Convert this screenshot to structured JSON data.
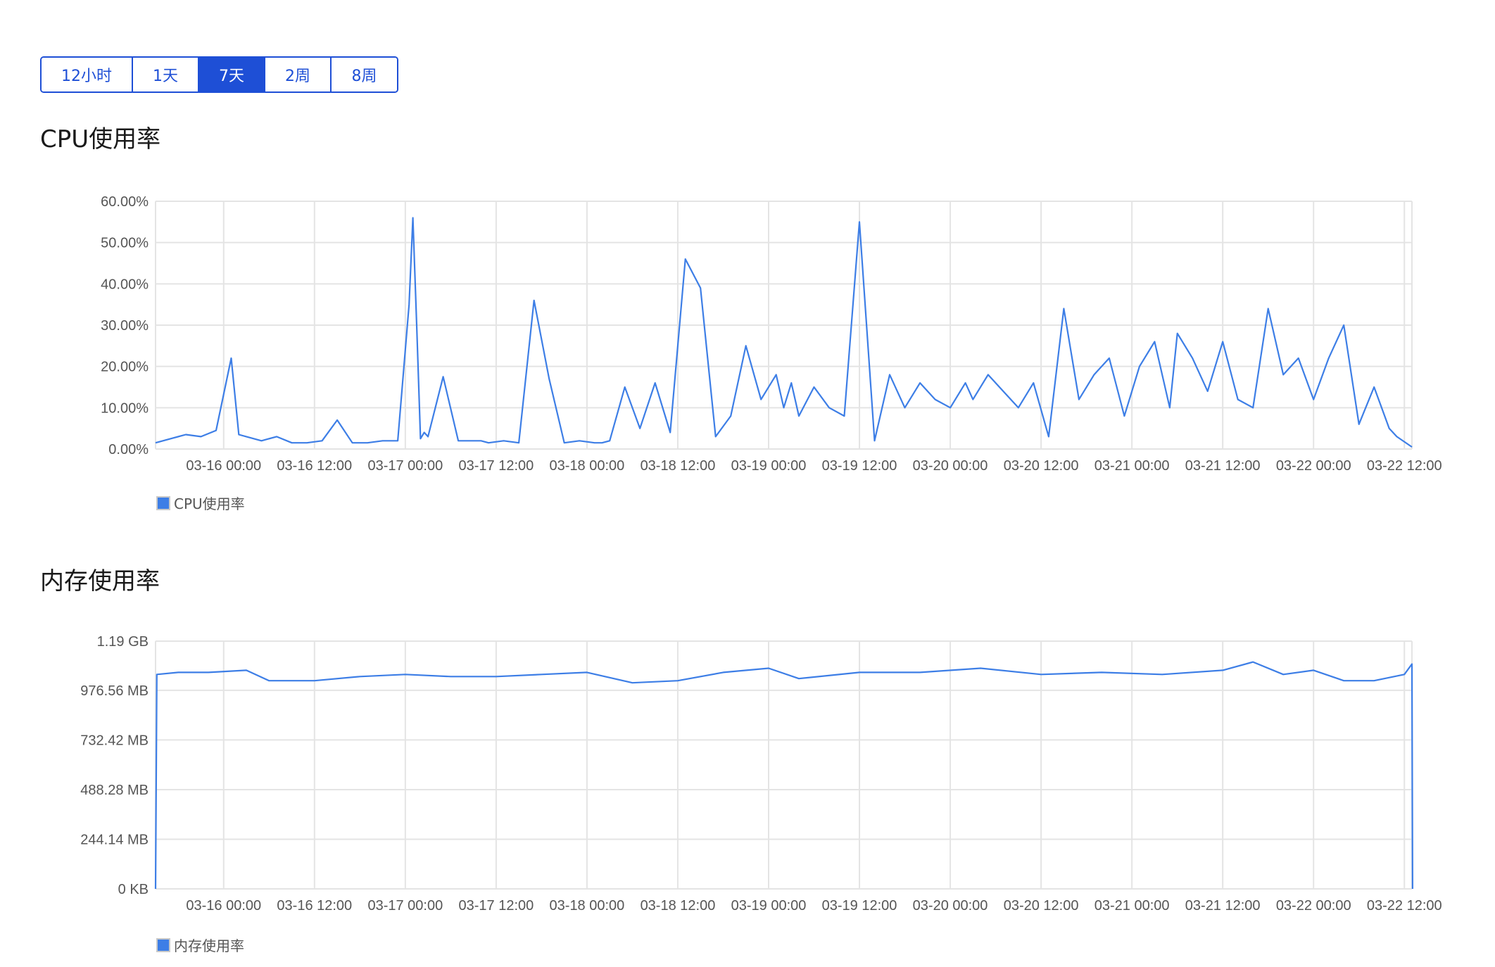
{
  "range_tabs": [
    {
      "label": "12小时",
      "active": false
    },
    {
      "label": "1天",
      "active": false
    },
    {
      "label": "7天",
      "active": true
    },
    {
      "label": "2周",
      "active": false
    },
    {
      "label": "8周",
      "active": false
    }
  ],
  "colors": {
    "accent": "#1e4fd6",
    "series": "#3d7ee6",
    "grid": "#e4e4e4"
  },
  "chart_data": [
    {
      "type": "line",
      "title": "CPU使用率",
      "legend": "CPU使用率",
      "legend_position": "bottom-left",
      "grid": true,
      "ylim": [
        0,
        60
      ],
      "y_ticks": [
        0,
        10,
        20,
        30,
        40,
        50,
        60
      ],
      "y_tick_labels": [
        "0.00%",
        "10.00%",
        "20.00%",
        "30.00%",
        "40.00%",
        "50.00%",
        "60.00%"
      ],
      "xlim": [
        "03-15 15:00",
        "03-22 13:00"
      ],
      "x_ticks": [
        "03-16 00:00",
        "03-16 12:00",
        "03-17 00:00",
        "03-17 12:00",
        "03-18 00:00",
        "03-18 12:00",
        "03-19 00:00",
        "03-19 12:00",
        "03-20 00:00",
        "03-20 12:00",
        "03-21 00:00",
        "03-21 12:00",
        "03-22 00:00",
        "03-22 12:00"
      ],
      "series": [
        {
          "name": "CPU使用率",
          "x": [
            "03-15 15:00",
            "03-15 17:00",
            "03-15 19:00",
            "03-15 21:00",
            "03-15 23:00",
            "03-16 01:00",
            "03-16 02:00",
            "03-16 03:00",
            "03-16 05:00",
            "03-16 07:00",
            "03-16 09:00",
            "03-16 11:00",
            "03-16 13:00",
            "03-16 15:00",
            "03-16 17:00",
            "03-16 19:00",
            "03-16 21:00",
            "03-16 23:00",
            "03-17 00:30",
            "03-17 01:00",
            "03-17 01:30",
            "03-17 02:00",
            "03-17 02:30",
            "03-17 03:00",
            "03-17 05:00",
            "03-17 07:00",
            "03-17 09:00",
            "03-17 10:00",
            "03-17 11:00",
            "03-17 13:00",
            "03-17 15:00",
            "03-17 17:00",
            "03-17 19:00",
            "03-17 21:00",
            "03-17 23:00",
            "03-18 01:00",
            "03-18 02:00",
            "03-18 03:00",
            "03-18 05:00",
            "03-18 07:00",
            "03-18 09:00",
            "03-18 11:00",
            "03-18 13:00",
            "03-18 15:00",
            "03-18 17:00",
            "03-18 19:00",
            "03-18 21:00",
            "03-18 23:00",
            "03-19 01:00",
            "03-19 02:00",
            "03-19 03:00",
            "03-19 04:00",
            "03-19 06:00",
            "03-19 08:00",
            "03-19 10:00",
            "03-19 12:00",
            "03-19 14:00",
            "03-19 16:00",
            "03-19 18:00",
            "03-19 20:00",
            "03-19 22:00",
            "03-20 00:00",
            "03-20 02:00",
            "03-20 03:00",
            "03-20 05:00",
            "03-20 07:00",
            "03-20 09:00",
            "03-20 11:00",
            "03-20 13:00",
            "03-20 15:00",
            "03-20 17:00",
            "03-20 19:00",
            "03-20 21:00",
            "03-20 23:00",
            "03-21 01:00",
            "03-21 03:00",
            "03-21 05:00",
            "03-21 06:00",
            "03-21 08:00",
            "03-21 10:00",
            "03-21 12:00",
            "03-21 14:00",
            "03-21 16:00",
            "03-21 18:00",
            "03-21 20:00",
            "03-21 22:00",
            "03-22 00:00",
            "03-22 02:00",
            "03-22 04:00",
            "03-22 06:00",
            "03-22 08:00",
            "03-22 10:00",
            "03-22 11:00",
            "03-22 13:00"
          ],
          "y": [
            1.5,
            2.5,
            3.5,
            3.0,
            4.5,
            22,
            3.5,
            3.0,
            2.0,
            3.0,
            1.5,
            1.5,
            2.0,
            7.0,
            1.5,
            1.5,
            2.0,
            2.0,
            35,
            56,
            30,
            2.5,
            4.0,
            3.0,
            17.5,
            2.0,
            2.0,
            2.0,
            1.5,
            2.0,
            1.5,
            36,
            17,
            1.5,
            2.0,
            1.5,
            1.5,
            2.0,
            15,
            5.0,
            16,
            4.0,
            46,
            39,
            3.0,
            8.0,
            25,
            12,
            18,
            10,
            16,
            8.0,
            15,
            10,
            8.0,
            55,
            2.0,
            18,
            10,
            16,
            12,
            10,
            16,
            12,
            18,
            14,
            10,
            16,
            3.0,
            34,
            12,
            18,
            22,
            8.0,
            20,
            26,
            10,
            28,
            22,
            14,
            26,
            12,
            10,
            34,
            18,
            22,
            12,
            22,
            30,
            6.0,
            15,
            5.0,
            3.0,
            0.5
          ]
        }
      ]
    },
    {
      "type": "line",
      "title": "内存使用率",
      "legend": "内存使用率",
      "legend_position": "bottom-left",
      "grid": true,
      "ylim": [
        0,
        1.19
      ],
      "y_unit": "GB",
      "y_ticks": [
        0,
        0.2384,
        0.4768,
        0.7153,
        0.9537,
        1.19
      ],
      "y_tick_labels": [
        "0 KB",
        "244.14 MB",
        "488.28 MB",
        "732.42 MB",
        "976.56 MB",
        "1.19 GB"
      ],
      "xlim": [
        "03-15 15:00",
        "03-22 13:00"
      ],
      "x_ticks": [
        "03-16 00:00",
        "03-16 12:00",
        "03-17 00:00",
        "03-17 12:00",
        "03-18 00:00",
        "03-18 12:00",
        "03-19 00:00",
        "03-19 12:00",
        "03-20 00:00",
        "03-20 12:00",
        "03-21 00:00",
        "03-21 12:00",
        "03-22 00:00",
        "03-22 12:00"
      ],
      "series": [
        {
          "name": "内存使用率",
          "x": [
            "03-15 15:00",
            "03-15 15:10",
            "03-15 18:00",
            "03-15 22:00",
            "03-16 03:00",
            "03-16 06:00",
            "03-16 12:00",
            "03-16 18:00",
            "03-17 00:00",
            "03-17 06:00",
            "03-17 12:00",
            "03-17 18:00",
            "03-18 00:00",
            "03-18 06:00",
            "03-18 12:00",
            "03-18 18:00",
            "03-19 00:00",
            "03-19 04:00",
            "03-19 12:00",
            "03-19 20:00",
            "03-20 04:00",
            "03-20 12:00",
            "03-20 20:00",
            "03-21 04:00",
            "03-21 12:00",
            "03-21 16:00",
            "03-21 20:00",
            "03-22 00:00",
            "03-22 04:00",
            "03-22 08:00",
            "03-22 12:00",
            "03-22 13:00",
            "03-22 13:05"
          ],
          "y": [
            0.0,
            1.03,
            1.04,
            1.04,
            1.05,
            1.0,
            1.0,
            1.02,
            1.03,
            1.02,
            1.02,
            1.03,
            1.04,
            0.99,
            1.0,
            1.04,
            1.06,
            1.01,
            1.04,
            1.04,
            1.06,
            1.03,
            1.04,
            1.03,
            1.05,
            1.09,
            1.03,
            1.05,
            1.0,
            1.0,
            1.03,
            1.08,
            0.0
          ]
        }
      ]
    }
  ]
}
